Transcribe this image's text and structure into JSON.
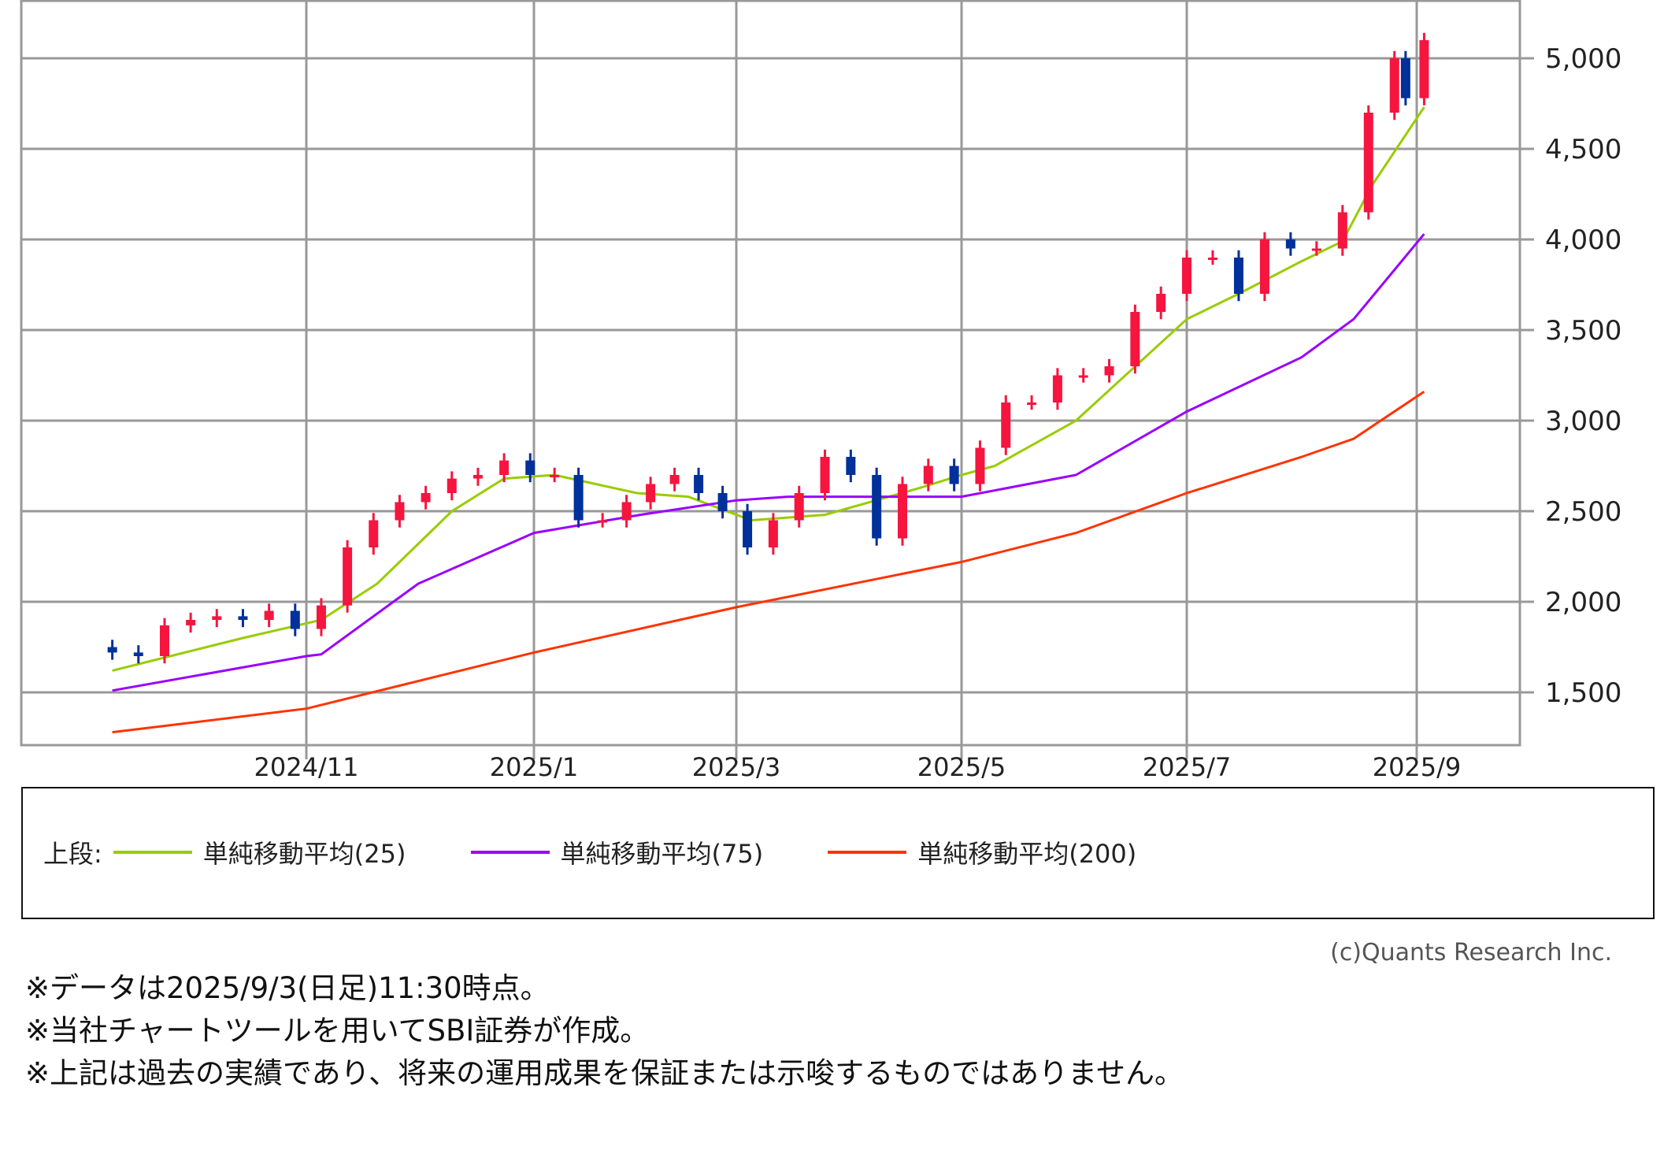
{
  "chart_data": {
    "type": "candlestick",
    "title": "",
    "xlabel": "",
    "ylabel": "",
    "ylim": [
      1210,
      5300
    ],
    "y_ticks": [
      1500,
      2000,
      2500,
      3000,
      3500,
      4000,
      4500,
      5000
    ],
    "y_tick_labels": [
      "1,500",
      "2,000",
      "2,500",
      "3,000",
      "3,500",
      "4,000",
      "4,500",
      "5,000"
    ],
    "x_ticks": [
      {
        "date": "2024-11-01",
        "label": "2024/11"
      },
      {
        "date": "2025-01-01",
        "label": "2025/1"
      },
      {
        "date": "2025-03-01",
        "label": "2025/3"
      },
      {
        "date": "2025-05-01",
        "label": "2025/5"
      },
      {
        "date": "2025-07-01",
        "label": "2025/7"
      },
      {
        "date": "2025-09-01",
        "label": "2025/9"
      }
    ],
    "grid": true,
    "up_color": "#f5153f",
    "down_color": "#00309a",
    "price": {
      "dates": [
        "2024-09-10",
        "2024-09-17",
        "2024-09-24",
        "2024-10-01",
        "2024-10-08",
        "2024-10-15",
        "2024-10-22",
        "2024-10-29",
        "2024-11-05",
        "2024-11-12",
        "2024-11-19",
        "2024-11-26",
        "2024-12-03",
        "2024-12-10",
        "2024-12-17",
        "2024-12-24",
        "2024-12-31",
        "2025-01-07",
        "2025-01-14",
        "2025-01-21",
        "2025-01-28",
        "2025-02-04",
        "2025-02-11",
        "2025-02-18",
        "2025-02-25",
        "2025-03-04",
        "2025-03-11",
        "2025-03-18",
        "2025-03-25",
        "2025-04-01",
        "2025-04-08",
        "2025-04-15",
        "2025-04-22",
        "2025-04-29",
        "2025-05-06",
        "2025-05-13",
        "2025-05-20",
        "2025-05-27",
        "2025-06-03",
        "2025-06-10",
        "2025-06-17",
        "2025-06-24",
        "2025-07-01",
        "2025-07-08",
        "2025-07-15",
        "2025-07-22",
        "2025-07-29",
        "2025-08-05",
        "2025-08-12",
        "2025-08-19",
        "2025-08-26",
        "2025-08-29",
        "2025-09-03"
      ],
      "close": [
        1720,
        1700,
        1870,
        1900,
        1920,
        1900,
        1950,
        1850,
        1980,
        2300,
        2450,
        2550,
        2600,
        2680,
        2700,
        2780,
        2700,
        2700,
        2450,
        2450,
        2550,
        2650,
        2700,
        2600,
        2500,
        2300,
        2450,
        2600,
        2800,
        2700,
        2350,
        2650,
        2750,
        2650,
        2850,
        3100,
        3100,
        3250,
        3250,
        3300,
        3600,
        3700,
        3900,
        3900,
        3700,
        4000,
        3950,
        3950,
        4150,
        4700,
        5000,
        4780,
        5100
      ]
    },
    "series": [
      {
        "name": "単純移動平均(25)",
        "color": "#99cc00",
        "dates": [
          "2024-09-10",
          "2024-10-15",
          "2024-11-05",
          "2024-11-20",
          "2024-12-10",
          "2024-12-24",
          "2025-01-07",
          "2025-01-31",
          "2025-02-15",
          "2025-03-05",
          "2025-03-25",
          "2025-04-20",
          "2025-05-01",
          "2025-05-10",
          "2025-06-01",
          "2025-07-01",
          "2025-07-15",
          "2025-08-01",
          "2025-08-12",
          "2025-08-20",
          "2025-09-03"
        ],
        "values": [
          1620,
          1800,
          1900,
          2100,
          2500,
          2680,
          2700,
          2600,
          2580,
          2450,
          2480,
          2630,
          2700,
          2750,
          3000,
          3560,
          3700,
          3880,
          3990,
          4300,
          4730
        ]
      },
      {
        "name": "単純移動平均(75)",
        "color": "#9900ff",
        "dates": [
          "2024-09-10",
          "2024-11-01",
          "2024-11-05",
          "2024-12-01",
          "2025-01-01",
          "2025-02-01",
          "2025-03-01",
          "2025-03-15",
          "2025-05-01",
          "2025-06-01",
          "2025-07-01",
          "2025-08-01",
          "2025-08-15",
          "2025-09-03"
        ],
        "values": [
          1510,
          1700,
          1710,
          2100,
          2380,
          2480,
          2560,
          2580,
          2580,
          2700,
          3050,
          3350,
          3560,
          4030
        ]
      },
      {
        "name": "単純移動平均(200)",
        "color": "#ff3300",
        "dates": [
          "2024-09-10",
          "2024-11-01",
          "2025-01-01",
          "2025-03-01",
          "2025-05-01",
          "2025-06-01",
          "2025-07-01",
          "2025-08-01",
          "2025-08-15",
          "2025-09-03"
        ],
        "values": [
          1280,
          1410,
          1720,
          1970,
          2220,
          2380,
          2600,
          2800,
          2900,
          3160
        ]
      }
    ]
  },
  "legend": {
    "prefix": "上段:",
    "items": [
      {
        "label": "単純移動平均(25)",
        "color": "#99cc00"
      },
      {
        "label": "単純移動平均(75)",
        "color": "#9900ff"
      },
      {
        "label": "単純移動平均(200)",
        "color": "#ff3300"
      }
    ]
  },
  "copyright": "(c)Quants Research Inc.",
  "notes": [
    "※データは2025/9/3(日足)11:30時点。",
    "※当社チャートツールを用いてSBI証券が作成。",
    "※上記は過去の実績であり、将来の運用成果を保証または示唆するものではありません。"
  ]
}
